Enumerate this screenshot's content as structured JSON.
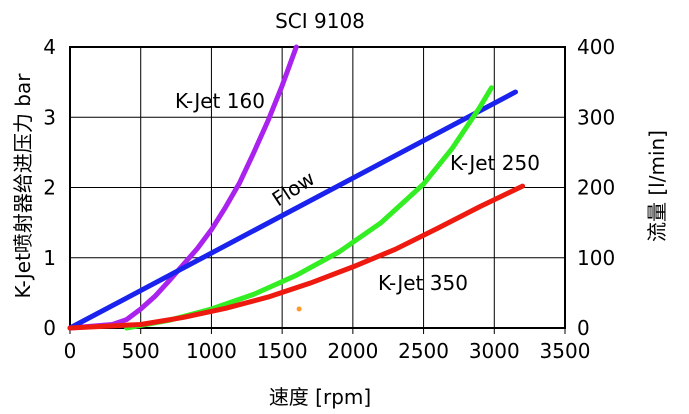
{
  "chart_data": {
    "type": "line",
    "title": "SCI 9108",
    "xlabel": "速度 [rpm]",
    "ylabel_left": "K-Jet喷射器给进压力 bar",
    "ylabel_right": "流量 [l/min]",
    "x_ticks": [
      "0",
      "500",
      "1000",
      "1500",
      "2000",
      "2500",
      "3000",
      "3500"
    ],
    "y_left_ticks": [
      "0",
      "1",
      "2",
      "3",
      "4"
    ],
    "y_right_ticks": [
      "0",
      "100",
      "200",
      "300",
      "400"
    ],
    "xlim": [
      0,
      3500
    ],
    "ylim_left": [
      0,
      4
    ],
    "ylim_right": [
      0,
      400
    ],
    "grid": true,
    "series": [
      {
        "name": "K-Jet 160",
        "color": "#aa22ee",
        "axis": "left",
        "x": [
          0,
          300,
          400,
          500,
          600,
          700,
          800,
          900,
          1000,
          1100,
          1200,
          1300,
          1400,
          1500,
          1600
        ],
        "values": [
          0,
          0.05,
          0.12,
          0.27,
          0.45,
          0.67,
          0.9,
          1.13,
          1.4,
          1.72,
          2.07,
          2.5,
          2.95,
          3.45,
          4.0
        ]
      },
      {
        "name": "Flow",
        "color": "#1a22ee",
        "axis": "right",
        "x": [
          0,
          3150
        ],
        "values": [
          0,
          336
        ]
      },
      {
        "name": "K-Jet 250",
        "color": "#33ee22",
        "axis": "left",
        "x": [
          400,
          700,
          1000,
          1300,
          1600,
          1900,
          2200,
          2500,
          2700,
          2900,
          2980
        ],
        "values": [
          0,
          0.11,
          0.27,
          0.48,
          0.75,
          1.08,
          1.5,
          2.05,
          2.55,
          3.15,
          3.42
        ]
      },
      {
        "name": "K-Jet 350",
        "color": "#ee1a10",
        "axis": "left",
        "x": [
          0,
          500,
          800,
          1100,
          1400,
          1700,
          2000,
          2300,
          2600,
          2900,
          3200
        ],
        "values": [
          0,
          0.05,
          0.15,
          0.28,
          0.44,
          0.64,
          0.87,
          1.12,
          1.42,
          1.73,
          2.02
        ]
      }
    ],
    "series_labels": [
      "K-Jet 160",
      "Flow",
      "K-Jet 250",
      "K-Jet 350"
    ],
    "marker": {
      "x": 1620,
      "y": 0.27,
      "color": "#ff9a2a"
    }
  }
}
